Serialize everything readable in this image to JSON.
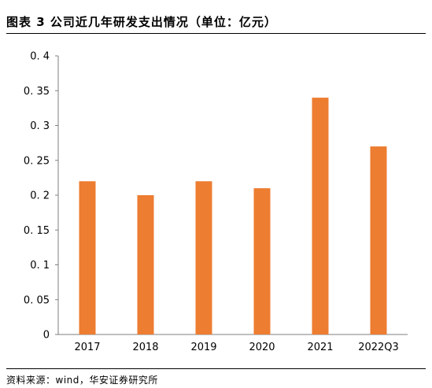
{
  "header": {
    "title": "图表 3 公司近几年研发支出情况（单位：亿元）"
  },
  "footer": {
    "source": "资料来源：wind，华安证券研究所"
  },
  "colors": {
    "bar": "#ED7D31",
    "axis": "#7f7f7f",
    "rule": "#000000"
  },
  "chart_data": {
    "type": "bar",
    "title": "图表 3 公司近几年研发支出情况（单位：亿元）",
    "xlabel": "",
    "ylabel": "",
    "categories": [
      "2017",
      "2018",
      "2019",
      "2020",
      "2021",
      "2022Q3"
    ],
    "values": [
      0.22,
      0.2,
      0.22,
      0.21,
      0.34,
      0.27
    ],
    "ylim": [
      0,
      0.4
    ],
    "yticks": [
      0,
      0.05,
      0.1,
      0.15,
      0.2,
      0.25,
      0.3,
      0.35,
      0.4
    ],
    "ytick_labels": [
      "0",
      "0. 05",
      "0. 1",
      "0. 15",
      "0. 2",
      "0. 25",
      "0. 3",
      "0. 35",
      "0. 4"
    ],
    "grid": false,
    "legend": "none"
  }
}
